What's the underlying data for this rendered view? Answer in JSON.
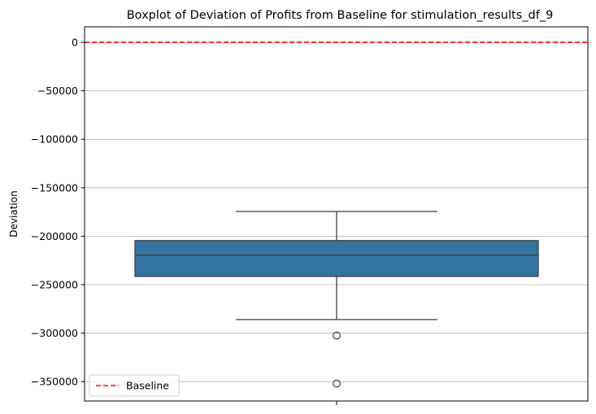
{
  "chart_data": {
    "type": "box",
    "title": "Boxplot of Deviation of Profits from Baseline for stimulation_results_df_9",
    "xlabel": "",
    "ylabel": "Deviation",
    "ylim": [
      -370000,
      16000
    ],
    "yticks": [
      0,
      -50000,
      -100000,
      -150000,
      -200000,
      -250000,
      -300000,
      -350000
    ],
    "ytick_labels": [
      "0",
      "−50000",
      "−100000",
      "−150000",
      "−200000",
      "−250000",
      "−300000",
      "−350000"
    ],
    "grid": "horizontal",
    "box": {
      "q1": -241500,
      "median": -219500,
      "q3": -204500,
      "whisker_low": -286000,
      "whisker_high": -174500,
      "fliers": [
        -302500,
        -352000
      ],
      "color": "#3274a1"
    },
    "baseline": {
      "value": 0,
      "label": "Baseline",
      "color": "#ff0000",
      "style": "dashed"
    },
    "legend": {
      "position": "lower-left",
      "entries": [
        "Baseline"
      ]
    }
  }
}
